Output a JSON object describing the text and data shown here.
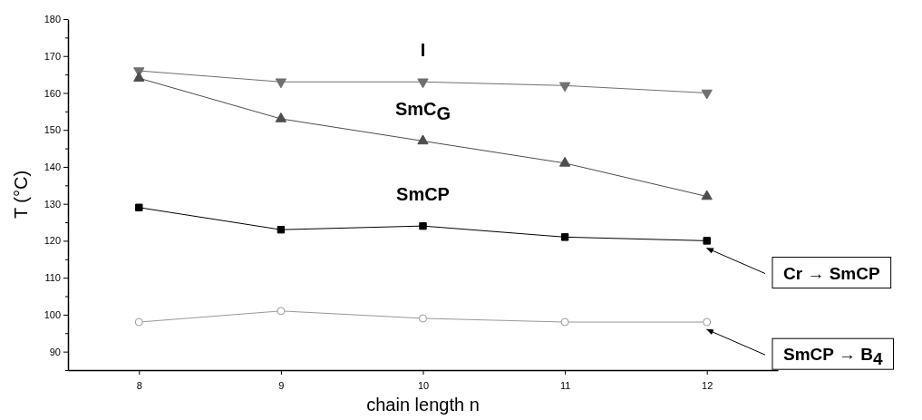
{
  "chart_data": {
    "type": "line",
    "xlabel": "chain length n",
    "ylabel": "T (°C)",
    "x": [
      8,
      9,
      10,
      11,
      12
    ],
    "xlim": [
      7.5,
      12.5
    ],
    "xticks": [
      8,
      9,
      10,
      11,
      12
    ],
    "ylim": [
      85,
      180
    ],
    "yticks": [
      {
        "value": 85,
        "label": null
      },
      90,
      {
        "value": 95,
        "label": null
      },
      100,
      {
        "value": 105,
        "label": null
      },
      110,
      {
        "value": 115,
        "label": null
      },
      120,
      {
        "value": 125,
        "label": null
      },
      130,
      {
        "value": 135,
        "label": null
      },
      140,
      {
        "value": 145,
        "label": null
      },
      150,
      {
        "value": 155,
        "label": null
      },
      160,
      {
        "value": 165,
        "label": null
      },
      170,
      {
        "value": 175,
        "label": null
      },
      180
    ],
    "grid": false,
    "line_style": "solid",
    "series": [
      {
        "name": "I",
        "color": "#707070",
        "marker": "triangle-down",
        "values": [
          166,
          163,
          163,
          162,
          160
        ]
      },
      {
        "name": "SmC$_{G}$",
        "color": "#4d4d4d",
        "marker": "triangle",
        "values": [
          164,
          153,
          147,
          141,
          132
        ]
      },
      {
        "name": "SmCP",
        "color": "#000000",
        "marker": "square",
        "values": [
          129,
          123,
          124,
          121,
          120
        ]
      },
      {
        "color": "#999999",
        "marker": "circle",
        "values": [
          98,
          101,
          99,
          98,
          98
        ]
      }
    ],
    "annotations": [
      {
        "text": "Cr → SmCP",
        "x": 12,
        "y": 118
      },
      {
        "text": "SmCP → B$_{4}$",
        "x": 12,
        "y": 96
      }
    ]
  }
}
